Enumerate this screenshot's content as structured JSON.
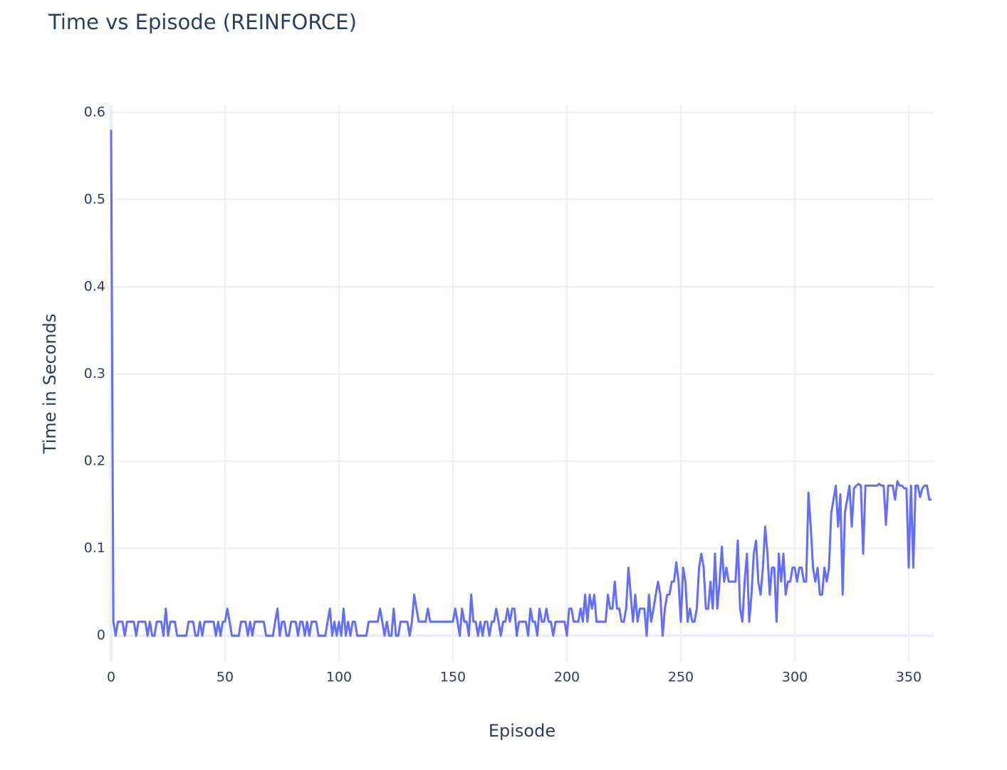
{
  "chart_data": {
    "type": "line",
    "title": "Time vs Episode (REINFORCE)",
    "x_label": "Episode",
    "y_label": "Time in Seconds",
    "x": [
      0,
      1,
      2,
      3,
      4,
      5,
      6,
      7,
      8,
      9,
      10,
      11,
      12,
      13,
      14,
      15,
      16,
      17,
      18,
      19,
      20,
      21,
      22,
      23,
      24,
      25,
      26,
      27,
      28,
      29,
      30,
      31,
      32,
      33,
      34,
      35,
      36,
      37,
      38,
      39,
      40,
      41,
      42,
      43,
      44,
      45,
      46,
      47,
      48,
      49,
      50,
      51,
      52,
      53,
      54,
      55,
      56,
      57,
      58,
      59,
      60,
      61,
      62,
      63,
      64,
      65,
      66,
      67,
      68,
      69,
      70,
      71,
      72,
      73,
      74,
      75,
      76,
      77,
      78,
      79,
      80,
      81,
      82,
      83,
      84,
      85,
      86,
      87,
      88,
      89,
      90,
      91,
      92,
      93,
      94,
      95,
      96,
      97,
      98,
      99,
      100,
      101,
      102,
      103,
      104,
      105,
      106,
      107,
      108,
      109,
      110,
      111,
      112,
      113,
      114,
      115,
      116,
      117,
      118,
      119,
      120,
      121,
      122,
      123,
      124,
      125,
      126,
      127,
      128,
      129,
      130,
      131,
      132,
      133,
      134,
      135,
      136,
      137,
      138,
      139,
      140,
      141,
      142,
      143,
      144,
      145,
      146,
      147,
      148,
      149,
      150,
      151,
      152,
      153,
      154,
      155,
      156,
      157,
      158,
      159,
      160,
      161,
      162,
      163,
      164,
      165,
      166,
      167,
      168,
      169,
      170,
      171,
      172,
      173,
      174,
      175,
      176,
      177,
      178,
      179,
      180,
      181,
      182,
      183,
      184,
      185,
      186,
      187,
      188,
      189,
      190,
      191,
      192,
      193,
      194,
      195,
      196,
      197,
      198,
      199,
      200,
      201,
      202,
      203,
      204,
      205,
      206,
      207,
      208,
      209,
      210,
      211,
      212,
      213,
      214,
      215,
      216,
      217,
      218,
      219,
      220,
      221,
      222,
      223,
      224,
      225,
      226,
      227,
      228,
      229,
      230,
      231,
      232,
      233,
      234,
      235,
      236,
      237,
      238,
      239,
      240,
      241,
      242,
      243,
      244,
      245,
      246,
      247,
      248,
      249,
      250,
      251,
      252,
      253,
      254,
      255,
      256,
      257,
      258,
      259,
      260,
      261,
      262,
      263,
      264,
      265,
      266,
      267,
      268,
      269,
      270,
      271,
      272,
      273,
      274,
      275,
      276,
      277,
      278,
      279,
      280,
      281,
      282,
      283,
      284,
      285,
      286,
      287,
      288,
      289,
      290,
      291,
      292,
      293,
      294,
      295,
      296,
      297,
      298,
      299,
      300,
      301,
      302,
      303,
      304,
      305,
      306,
      307,
      308,
      309,
      310,
      311,
      312,
      313,
      314,
      315,
      316,
      317,
      318,
      319,
      320,
      321,
      322,
      323,
      324,
      325,
      326,
      327,
      328,
      329,
      330,
      331,
      332,
      333,
      334,
      335,
      336,
      337,
      338,
      339,
      340,
      341,
      342,
      343,
      344,
      345,
      346,
      347,
      348,
      349,
      350,
      351,
      352,
      353,
      354,
      355,
      356,
      357,
      358,
      359,
      360
    ],
    "series": [
      {
        "name": "Time",
        "color": "#636efa",
        "values": [
          0.58,
          0.016,
          0,
          0.016,
          0.016,
          0.016,
          0,
          0.016,
          0.016,
          0.016,
          0.016,
          0,
          0.016,
          0.016,
          0.016,
          0.016,
          0,
          0.016,
          0,
          0,
          0.016,
          0.016,
          0.016,
          0,
          0.031,
          0,
          0.016,
          0.016,
          0.016,
          0,
          0,
          0,
          0,
          0,
          0.016,
          0.016,
          0.016,
          0,
          0,
          0.016,
          0,
          0.016,
          0.016,
          0.016,
          0.016,
          0.016,
          0,
          0.016,
          0,
          0.016,
          0.016,
          0.031,
          0.016,
          0,
          0,
          0,
          0,
          0.016,
          0.016,
          0.016,
          0,
          0.016,
          0,
          0.016,
          0.016,
          0.016,
          0.016,
          0.016,
          0,
          0,
          0,
          0,
          0.016,
          0.031,
          0,
          0.016,
          0.016,
          0,
          0,
          0.016,
          0.016,
          0.016,
          0,
          0.016,
          0.016,
          0,
          0.016,
          0,
          0.016,
          0.016,
          0.016,
          0,
          0,
          0,
          0,
          0.016,
          0.031,
          0,
          0.016,
          0,
          0.016,
          0,
          0.031,
          0,
          0.016,
          0,
          0.016,
          0.016,
          0,
          0,
          0,
          0,
          0,
          0.016,
          0.016,
          0.016,
          0.016,
          0.016,
          0.031,
          0.016,
          0,
          0.016,
          0,
          0,
          0.031,
          0,
          0,
          0.016,
          0.016,
          0.016,
          0.016,
          0,
          0.016,
          0.047,
          0.031,
          0.016,
          0.016,
          0.016,
          0.016,
          0.031,
          0.016,
          0.016,
          0.016,
          0.016,
          0.016,
          0.016,
          0.016,
          0.016,
          0.016,
          0.016,
          0.016,
          0.031,
          0.016,
          0,
          0.031,
          0.016,
          0.016,
          0,
          0.047,
          0.016,
          0.016,
          0,
          0.016,
          0,
          0.016,
          0.016,
          0,
          0.016,
          0.016,
          0.031,
          0.016,
          0,
          0.016,
          0.016,
          0.031,
          0.016,
          0.031,
          0.031,
          0,
          0.016,
          0.016,
          0.016,
          0.016,
          0,
          0.031,
          0.016,
          0.016,
          0,
          0.031,
          0.016,
          0.016,
          0.031,
          0.016,
          0.016,
          0,
          0.016,
          0.016,
          0.016,
          0.016,
          0.016,
          0,
          0.031,
          0.031,
          0.016,
          0.016,
          0.016,
          0.031,
          0.016,
          0.047,
          0.016,
          0.047,
          0.031,
          0.047,
          0.016,
          0.016,
          0.016,
          0.016,
          0.016,
          0.047,
          0.031,
          0.031,
          0.062,
          0.031,
          0.031,
          0.016,
          0.016,
          0.031,
          0.078,
          0.047,
          0.016,
          0.047,
          0.016,
          0.031,
          0.031,
          0.031,
          0,
          0.047,
          0.016,
          0.031,
          0.047,
          0.062,
          0.047,
          0,
          0.031,
          0.047,
          0.047,
          0.062,
          0.062,
          0.084,
          0.062,
          0.016,
          0.078,
          0.062,
          0.016,
          0.031,
          0.016,
          0.016,
          0.031,
          0.078,
          0.094,
          0.078,
          0.031,
          0.031,
          0.062,
          0.031,
          0.094,
          0.031,
          0.062,
          0.102,
          0.062,
          0.078,
          0.062,
          0.062,
          0.062,
          0.062,
          0.109,
          0.031,
          0.016,
          0.062,
          0.094,
          0.016,
          0.047,
          0.094,
          0.109,
          0.062,
          0.047,
          0.078,
          0.125,
          0.094,
          0.047,
          0.078,
          0.078,
          0.016,
          0.094,
          0.062,
          0.094,
          0.047,
          0.062,
          0.062,
          0.078,
          0.078,
          0.062,
          0.078,
          0.078,
          0.062,
          0.062,
          0.164,
          0.125,
          0.078,
          0.062,
          0.078,
          0.047,
          0.047,
          0.078,
          0.062,
          0.078,
          0.141,
          0.156,
          0.172,
          0.125,
          0.162,
          0.047,
          0.141,
          0.156,
          0.172,
          0.125,
          0.169,
          0.172,
          0.174,
          0.172,
          0.094,
          0.172,
          0.172,
          0.172,
          0.172,
          0.172,
          0.172,
          0.174,
          0.172,
          0.172,
          0.127,
          0.172,
          0.172,
          0.172,
          0.156,
          0.177,
          0.172,
          0.172,
          0.169,
          0.169,
          0.078,
          0.172,
          0.078,
          0.172,
          0.172,
          0.159,
          0.169,
          0.172,
          0.172,
          0.156,
          0.156
        ]
      }
    ],
    "xlim": [
      0,
      360
    ],
    "ylim": [
      -0.03,
      0.608
    ],
    "xticks": [
      0,
      50,
      100,
      150,
      200,
      250,
      300,
      350
    ],
    "yticks": [
      0,
      0.1,
      0.2,
      0.3,
      0.4,
      0.5,
      0.6
    ],
    "grid": true
  }
}
